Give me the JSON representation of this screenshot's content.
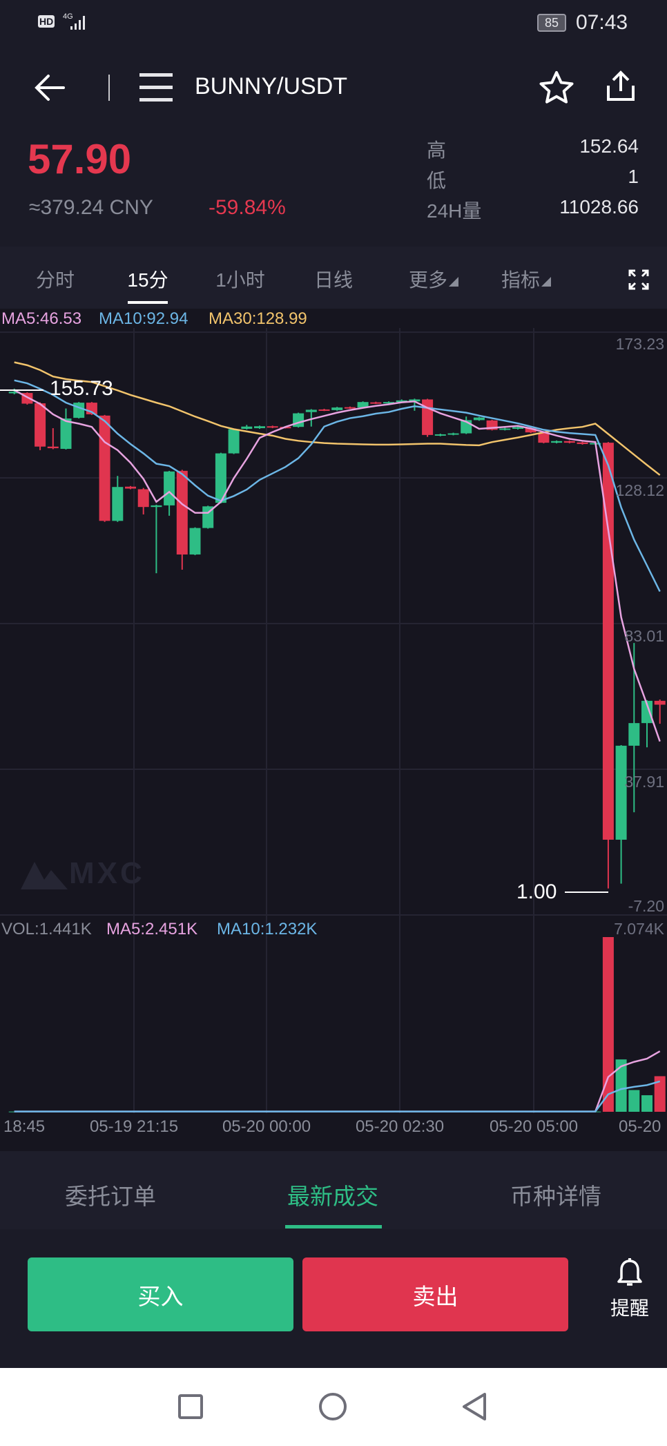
{
  "status_bar": {
    "network": "4G",
    "hd": "HD",
    "battery": "85",
    "time": "07:43"
  },
  "header": {
    "pair": "BUNNY/USDT",
    "back_icon": "arrow-left-icon",
    "menu_icon": "hamburger-icon",
    "favorite_icon": "star-icon",
    "share_icon": "share-icon"
  },
  "ticker": {
    "last_price": "57.90",
    "cny": "≈379.24 CNY",
    "change": "-59.84%",
    "high_label": "高",
    "high": "152.64",
    "low_label": "低",
    "low": "1",
    "vol_label": "24H量",
    "vol": "11028.66"
  },
  "period_tabs": [
    {
      "label": "分时"
    },
    {
      "label": "15分",
      "active": true
    },
    {
      "label": "1小时"
    },
    {
      "label": "日线"
    },
    {
      "label": "更多"
    },
    {
      "label": "指标"
    }
  ],
  "legend": {
    "ma5": "MA5:46.53",
    "ma10": "MA10:92.94",
    "ma30": "MA30:128.99"
  },
  "vol_legend": {
    "vol": "VOL:1.441K",
    "ma5": "MA5:2.451K",
    "ma10": "MA10:1.232K"
  },
  "watermark": "MXC",
  "colors": {
    "up": "#2ebd85",
    "down": "#e0354f",
    "ma5": "#e7a3e0",
    "ma10": "#6cb6e6",
    "ma30": "#f2c46c"
  },
  "chart_data": {
    "type": "candlestick",
    "interval": "15分",
    "y_ticks": [
      "173.23",
      "128.12",
      "83.01",
      "37.91",
      "-7.20"
    ],
    "ylim": [
      -7.2,
      173.23
    ],
    "vol_max_label": "7.074K",
    "x_ticks": [
      "18:45",
      "05-19 21:15",
      "05-20 00:00",
      "05-20 02:30",
      "05-20 05:00",
      "05-20"
    ],
    "max_marker": "155.73",
    "min_marker": "1.00",
    "ohlc": [
      [
        154.3,
        155.73,
        154.0,
        154.8
      ],
      [
        154.4,
        154.6,
        150.8,
        151.1
      ],
      [
        151.2,
        151.5,
        136.7,
        137.8
      ],
      [
        137.8,
        143.5,
        137.0,
        137.3
      ],
      [
        137.1,
        149.6,
        136.9,
        146.5
      ],
      [
        146.7,
        151.6,
        146.5,
        151.4
      ],
      [
        151.4,
        151.6,
        147.6,
        147.8
      ],
      [
        147.4,
        147.6,
        114.5,
        114.8
      ],
      [
        114.8,
        128.7,
        114.5,
        125.3
      ],
      [
        125.4,
        125.6,
        124.6,
        124.8
      ],
      [
        124.6,
        125.0,
        116.8,
        119.1
      ],
      [
        119.1,
        119.8,
        98.6,
        119.6
      ],
      [
        119.6,
        130.3,
        116.4,
        130.1
      ],
      [
        130.3,
        130.6,
        99.7,
        104.4
      ],
      [
        104.4,
        112.8,
        104.2,
        112.6
      ],
      [
        112.6,
        119.5,
        112.4,
        119.3
      ],
      [
        120.4,
        135.9,
        120.2,
        135.7
      ],
      [
        135.7,
        143.4,
        135.5,
        143.2
      ],
      [
        143.3,
        144.5,
        143.1,
        144.0
      ],
      [
        143.5,
        144.3,
        143.3,
        144.1
      ],
      [
        144.1,
        144.3,
        143.5,
        143.7
      ],
      [
        143.9,
        144.1,
        143.4,
        143.6
      ],
      [
        143.9,
        148.3,
        143.7,
        148.1
      ],
      [
        148.5,
        149.4,
        144.0,
        149.2
      ],
      [
        149.3,
        149.5,
        148.8,
        149.0
      ],
      [
        149.1,
        150.1,
        148.9,
        149.9
      ],
      [
        150.0,
        150.2,
        149.5,
        149.7
      ],
      [
        149.9,
        151.8,
        149.7,
        151.6
      ],
      [
        151.5,
        151.7,
        151.0,
        151.2
      ],
      [
        151.2,
        151.8,
        151.0,
        151.6
      ],
      [
        151.6,
        152.4,
        151.4,
        152.1
      ],
      [
        151.8,
        152.64,
        148.9,
        152.4
      ],
      [
        152.4,
        152.6,
        140.8,
        141.4
      ],
      [
        141.2,
        141.8,
        141.0,
        141.6
      ],
      [
        141.5,
        142.1,
        141.3,
        141.9
      ],
      [
        141.9,
        147.1,
        141.7,
        146.0
      ],
      [
        146.0,
        147.0,
        145.8,
        146.8
      ],
      [
        145.9,
        146.1,
        142.8,
        143.0
      ],
      [
        143.0,
        143.6,
        142.8,
        143.4
      ],
      [
        143.3,
        144.0,
        143.1,
        143.8
      ],
      [
        143.5,
        143.7,
        142.0,
        142.2
      ],
      [
        142.1,
        142.3,
        138.8,
        139.0
      ],
      [
        139.0,
        139.7,
        138.8,
        139.5
      ],
      [
        139.5,
        139.7,
        138.8,
        139.0
      ],
      [
        139.1,
        139.3,
        138.4,
        138.6
      ],
      [
        138.7,
        139.1,
        138.5,
        138.9
      ],
      [
        139.0,
        139.2,
        1.0,
        16.1
      ],
      [
        16.1,
        45.4,
        2.5,
        45.2
      ],
      [
        45.2,
        77.0,
        24.6,
        52.2
      ],
      [
        52.2,
        59.3,
        44.7,
        59.1
      ],
      [
        59.1,
        59.5,
        52.0,
        57.9
      ]
    ],
    "ma5": [
      155.3,
      153.1,
      151.0,
      147.8,
      145.7,
      144.9,
      143.9,
      139.2,
      136.7,
      132.8,
      127.8,
      120.7,
      123.8,
      120.0,
      117.3,
      117.3,
      120.7,
      128,
      134,
      140.5,
      142.3,
      143.9,
      145.2,
      146.3,
      147.3,
      148.3,
      149.1,
      149.8,
      150.4,
      150.9,
      151.5,
      151.8,
      149.8,
      148.1,
      146.8,
      145.5,
      143.3,
      143.6,
      143.9,
      144.2,
      143.4,
      142.3,
      141.2,
      140.2,
      139.6,
      139.2,
      112,
      85,
      69,
      58,
      46.53
    ],
    "ma10": [
      158.3,
      157.4,
      155.7,
      153.8,
      151.4,
      149.9,
      148.5,
      145.7,
      141.8,
      138.6,
      135.7,
      132.5,
      131.8,
      129.3,
      125.8,
      122.6,
      121.0,
      122.5,
      124.5,
      127.5,
      129.5,
      131.5,
      134.2,
      138.5,
      144.0,
      145.5,
      146.6,
      147.2,
      148.0,
      148.5,
      149.5,
      150.3,
      149.8,
      149.3,
      148.8,
      148.3,
      147.4,
      146.6,
      145.8,
      145.0,
      144.0,
      143.0,
      142.4,
      142.0,
      141.7,
      141.4,
      132,
      119,
      109,
      101,
      92.94
    ],
    "ma30": [
      163.9,
      163,
      161.5,
      159.5,
      158.7,
      158.2,
      157.8,
      156.5,
      155.2,
      153.8,
      152.6,
      151.4,
      150.3,
      148.7,
      147.1,
      145.7,
      144.2,
      143.2,
      142.5,
      141.8,
      141.2,
      140.2,
      139.6,
      139.2,
      138.9,
      138.7,
      138.6,
      138.5,
      138.4,
      138.4,
      138.5,
      138.6,
      138.7,
      138.7,
      138.5,
      138.3,
      138.2,
      139.2,
      139.9,
      140.6,
      141.4,
      142.2,
      143.0,
      143.5,
      143.9,
      144.9,
      141.7,
      138.5,
      135.3,
      132.1,
      128.99
    ],
    "volume_k": [
      0.01,
      0.01,
      0.01,
      0.01,
      0.01,
      0.01,
      0.01,
      0.01,
      0.01,
      0.01,
      0.01,
      0.01,
      0.01,
      0.01,
      0.01,
      0.01,
      0.01,
      0.01,
      0.01,
      0.01,
      0.01,
      0.01,
      0.01,
      0.01,
      0.01,
      0.01,
      0.01,
      0.01,
      0.01,
      0.01,
      0.01,
      0.01,
      0.01,
      0.01,
      0.01,
      0.01,
      0.01,
      0.01,
      0.01,
      0.01,
      0.01,
      0.01,
      0.01,
      0.01,
      0.01,
      0.01,
      7.074,
      2.12,
      0.88,
      0.67,
      1.441
    ],
    "vol_ma5_k": [
      0.01,
      0.01,
      0.01,
      0.01,
      0.01,
      0.01,
      0.01,
      0.01,
      0.01,
      0.01,
      0.01,
      0.01,
      0.01,
      0.01,
      0.01,
      0.01,
      0.01,
      0.01,
      0.01,
      0.01,
      0.01,
      0.01,
      0.01,
      0.01,
      0.01,
      0.01,
      0.01,
      0.01,
      0.01,
      0.01,
      0.01,
      0.01,
      0.01,
      0.01,
      0.01,
      0.01,
      0.01,
      0.01,
      0.01,
      0.01,
      0.01,
      0.01,
      0.01,
      0.01,
      0.01,
      0.01,
      1.41,
      1.84,
      2.02,
      2.15,
      2.451
    ],
    "vol_ma10_k": [
      0.01,
      0.01,
      0.01,
      0.01,
      0.01,
      0.01,
      0.01,
      0.01,
      0.01,
      0.01,
      0.01,
      0.01,
      0.01,
      0.01,
      0.01,
      0.01,
      0.01,
      0.01,
      0.01,
      0.01,
      0.01,
      0.01,
      0.01,
      0.01,
      0.01,
      0.01,
      0.01,
      0.01,
      0.01,
      0.01,
      0.01,
      0.01,
      0.01,
      0.01,
      0.01,
      0.01,
      0.01,
      0.01,
      0.01,
      0.01,
      0.01,
      0.01,
      0.01,
      0.01,
      0.01,
      0.01,
      0.71,
      0.92,
      1.01,
      1.08,
      1.232
    ]
  },
  "bottom_tabs": [
    {
      "label": "委托订单"
    },
    {
      "label": "最新成交",
      "active": true
    },
    {
      "label": "币种详情"
    }
  ],
  "actions": {
    "buy": "买入",
    "sell": "卖出",
    "alert": "提醒",
    "alert_icon": "bell-icon"
  },
  "nav": {
    "recent_icon": "square-icon",
    "home_icon": "circle-icon",
    "back_icon": "triangle-back-icon"
  }
}
